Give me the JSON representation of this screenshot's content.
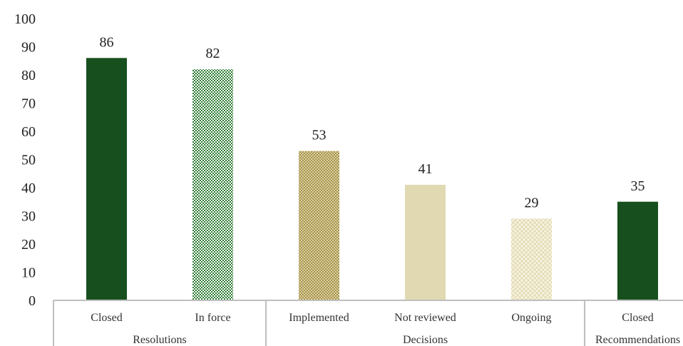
{
  "chart_data": {
    "type": "bar",
    "ylim": [
      0,
      100
    ],
    "yticks": [
      0,
      10,
      20,
      30,
      40,
      50,
      60,
      70,
      80,
      90,
      100
    ],
    "grid": false,
    "categories": [
      "Closed",
      "In force",
      "Implemented",
      "Not reviewed",
      "Ongoing",
      "Closed"
    ],
    "groups": [
      {
        "label": "Resolutions",
        "categories": [
          "Closed",
          "In force"
        ]
      },
      {
        "label": "Decisions",
        "categories": [
          "Implemented",
          "Not reviewed",
          "Ongoing"
        ]
      },
      {
        "label": "Recommendations",
        "categories": [
          "Closed"
        ]
      }
    ],
    "values": [
      86,
      82,
      53,
      41,
      29,
      35
    ],
    "colors": [
      "#17501e",
      "#2f7d35",
      "#b3a25c",
      "#e0d9b1",
      "#ece6c6",
      "#17501e"
    ],
    "patterns": [
      "solid",
      "checker",
      "dots",
      "solid",
      "crosshatch",
      "solid"
    ]
  }
}
